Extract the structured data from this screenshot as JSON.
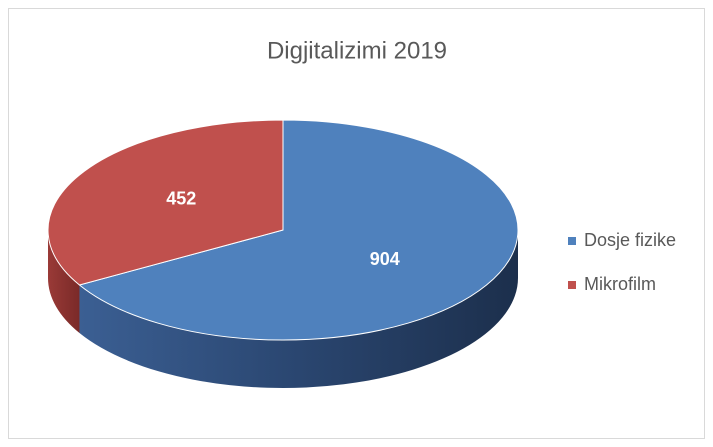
{
  "chart_data": {
    "type": "pie",
    "title": "Digjitalizimi 2019",
    "categories": [
      "Dosje fizike",
      "Mikrofilm"
    ],
    "values": [
      904,
      452
    ],
    "colors": [
      "#4f81bd",
      "#c0504d"
    ],
    "legend": "right"
  }
}
